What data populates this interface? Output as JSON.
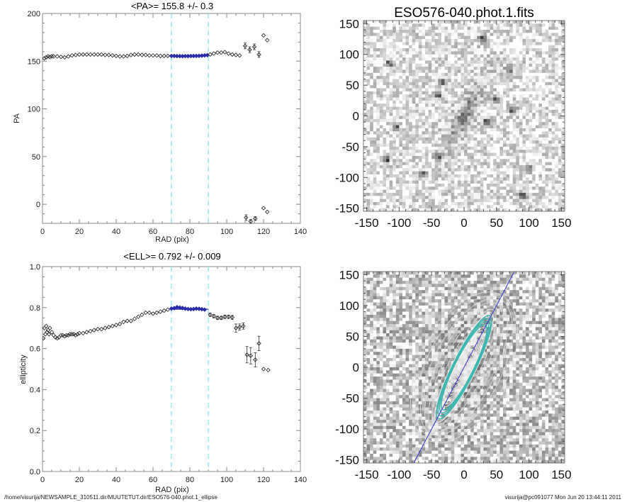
{
  "footer": {
    "path": "/home/visurija/NEWSAMPLE_310511.dir/MUUTETUT.dir/ESO576-040.phot.1_ellipse",
    "stamp": "visurija@pc091077  Mon Jun 20 13:44:11 2011"
  },
  "colors": {
    "fit_window": "#7fe3ef",
    "fit_points": "#2a2aa8",
    "data_points": "#333333",
    "contour_cyan": "#3fb8b0",
    "major_axis": "#3a3ad0"
  },
  "chart_data": [
    {
      "type": "scatter",
      "title": "<PA>= 155.8 +/-   0.3",
      "xlabel": "RAD (pix)",
      "ylabel": "PA",
      "xlim": [
        0,
        140
      ],
      "ylim": [
        -20,
        200
      ],
      "xticks": [
        "0",
        "20",
        "40",
        "60",
        "80",
        "100",
        "120",
        "140"
      ],
      "yticks": [
        "0",
        "50",
        "100",
        "150",
        "200"
      ],
      "fit_window": [
        70,
        90
      ],
      "mean": 155.8,
      "err": 0.3,
      "series": [
        {
          "name": "inner",
          "x": [
            1,
            2,
            3,
            4,
            5,
            6,
            8,
            10,
            12,
            14,
            16,
            18,
            20,
            22,
            24,
            26,
            28,
            30,
            32,
            34,
            36,
            38,
            40,
            42,
            44,
            46,
            48,
            50,
            52,
            54,
            56,
            58,
            60,
            62,
            64,
            66,
            68
          ],
          "y": [
            153,
            154,
            155,
            154.5,
            155,
            155,
            155,
            154.5,
            154,
            155,
            156,
            156.5,
            157,
            157,
            157,
            157,
            157,
            157,
            157,
            156.5,
            156.5,
            156,
            155.5,
            155,
            155,
            155.5,
            156.5,
            157,
            157,
            156.5,
            156.5,
            156,
            156,
            156,
            155.5,
            155.5,
            155.5
          ]
        },
        {
          "name": "fit",
          "x": [
            70,
            71.5,
            73,
            74.5,
            76,
            77.5,
            79,
            80.5,
            82,
            83.5,
            85,
            86.5,
            88,
            89.5
          ],
          "y": [
            155.5,
            155.5,
            155.3,
            155.3,
            155.2,
            155.3,
            155.3,
            155.4,
            155.5,
            155.5,
            155.6,
            155.8,
            156,
            156.3
          ]
        },
        {
          "name": "outer",
          "x": [
            91,
            93,
            95,
            97,
            99,
            101,
            103,
            105,
            107
          ],
          "y": [
            157,
            158,
            159,
            159,
            159.5,
            158,
            157,
            156.5,
            156
          ]
        },
        {
          "name": "outer_err",
          "x": [
            110,
            112.5,
            115,
            117.5
          ],
          "y": [
            166,
            162,
            165,
            157
          ],
          "err": [
            3,
            3,
            3,
            3
          ]
        },
        {
          "name": "outer_high",
          "x": [
            120,
            122
          ],
          "y": [
            177,
            172
          ]
        },
        {
          "name": "wrapped_err",
          "x": [
            110.5,
            113,
            115.5
          ],
          "y": [
            -14,
            -18,
            -15
          ],
          "err": [
            3,
            2,
            2
          ]
        },
        {
          "name": "wrapped",
          "x": [
            120,
            122
          ],
          "y": [
            -4,
            -8
          ]
        }
      ]
    },
    {
      "type": "scatter",
      "title": "<ELL>= 0.792 +/-  0.009",
      "xlabel": "RAD (pix)",
      "ylabel": "ellipticity",
      "xlim": [
        0,
        140
      ],
      "ylim": [
        0,
        1
      ],
      "xticks": [
        "0",
        "20",
        "40",
        "60",
        "80",
        "100",
        "120",
        "140"
      ],
      "yticks": [
        "0.0",
        "0.2",
        "0.4",
        "0.6",
        "0.8",
        "1.0"
      ],
      "fit_window": [
        70,
        90
      ],
      "mean": 0.792,
      "err": 0.009,
      "series": [
        {
          "name": "inner",
          "x": [
            0.5,
            1,
            1.5,
            2,
            2.5,
            3,
            3.5,
            4,
            5,
            6,
            7,
            8,
            9,
            10,
            11,
            12,
            13,
            14,
            15,
            16,
            17,
            18,
            19,
            20,
            22,
            24,
            26,
            28,
            30,
            32,
            34,
            36,
            38,
            40,
            42,
            44,
            46,
            48,
            50,
            52,
            54,
            56,
            58,
            60,
            62,
            64,
            66,
            68
          ],
          "y": [
            0.65,
            0.7,
            0.67,
            0.71,
            0.68,
            0.69,
            0.67,
            0.7,
            0.68,
            0.665,
            0.655,
            0.65,
            0.655,
            0.665,
            0.665,
            0.66,
            0.665,
            0.665,
            0.67,
            0.67,
            0.67,
            0.665,
            0.67,
            0.675,
            0.675,
            0.68,
            0.685,
            0.69,
            0.695,
            0.695,
            0.7,
            0.705,
            0.71,
            0.715,
            0.72,
            0.73,
            0.735,
            0.735,
            0.745,
            0.755,
            0.765,
            0.775,
            0.775,
            0.77,
            0.775,
            0.78,
            0.785,
            0.79
          ]
        },
        {
          "name": "fit",
          "x": [
            70,
            71.5,
            73,
            74.5,
            76,
            77.5,
            79,
            80.5,
            82,
            83.5,
            85,
            86.5,
            88
          ],
          "y": [
            0.795,
            0.797,
            0.802,
            0.8,
            0.798,
            0.795,
            0.793,
            0.792,
            0.793,
            0.795,
            0.794,
            0.792,
            0.79
          ]
        },
        {
          "name": "outer_err",
          "x": [
            91,
            93,
            95,
            97,
            99,
            101,
            103,
            105,
            107,
            109
          ],
          "y": [
            0.765,
            0.758,
            0.75,
            0.75,
            0.755,
            0.755,
            0.752,
            0.7,
            0.705,
            0.71
          ],
          "err": [
            0.008,
            0.008,
            0.008,
            0.008,
            0.008,
            0.008,
            0.01,
            0.02,
            0.015,
            0.015
          ]
        },
        {
          "name": "outer_far",
          "x": [
            111,
            113,
            115.5,
            117.5
          ],
          "y": [
            0.57,
            0.565,
            0.545,
            0.625
          ],
          "err": [
            0.04,
            0.04,
            0.035,
            0.035
          ]
        },
        {
          "name": "outer_last",
          "x": [
            120,
            122.5
          ],
          "y": [
            0.5,
            0.495
          ]
        }
      ]
    },
    {
      "type": "heatmap",
      "title": "ESO576-040.phot.1.fits",
      "xlim": [
        -155,
        155
      ],
      "ylim": [
        -155,
        155
      ],
      "xticks": [
        "-150",
        "-100",
        "-50",
        "0",
        "50",
        "100",
        "150"
      ],
      "yticks": [
        "-150",
        "-100",
        "-50",
        "0",
        "50",
        "100",
        "150"
      ],
      "galaxy": {
        "center": [
          0,
          0
        ],
        "pa_deg": 155.8,
        "ellipticity": 0.792,
        "extent": 90
      },
      "stars": [
        [
          28,
          125
        ],
        [
          -115,
          85
        ],
        [
          -35,
          55
        ],
        [
          -40,
          35
        ],
        [
          -65,
          -95
        ],
        [
          -40,
          -65
        ],
        [
          -105,
          -20
        ],
        [
          70,
          75
        ],
        [
          50,
          25
        ],
        [
          35,
          -10
        ],
        [
          75,
          10
        ],
        [
          100,
          -85
        ],
        [
          -120,
          -72
        ],
        [
          90,
          -130
        ]
      ]
    },
    {
      "type": "heatmap",
      "title": "",
      "xlim": [
        -155,
        155
      ],
      "ylim": [
        -155,
        155
      ],
      "xticks": [
        "-150",
        "-100",
        "-50",
        "0",
        "50",
        "100",
        "150"
      ],
      "yticks": [
        "-150",
        "-100",
        "-50",
        "0",
        "50",
        "100",
        "150"
      ],
      "contours": {
        "pa_deg": 155.8,
        "ellipticity": 0.792,
        "fit_radii": [
          70,
          90
        ],
        "max_radius": 125
      },
      "major_axis_line": {
        "pa_deg": 155.8
      }
    }
  ]
}
